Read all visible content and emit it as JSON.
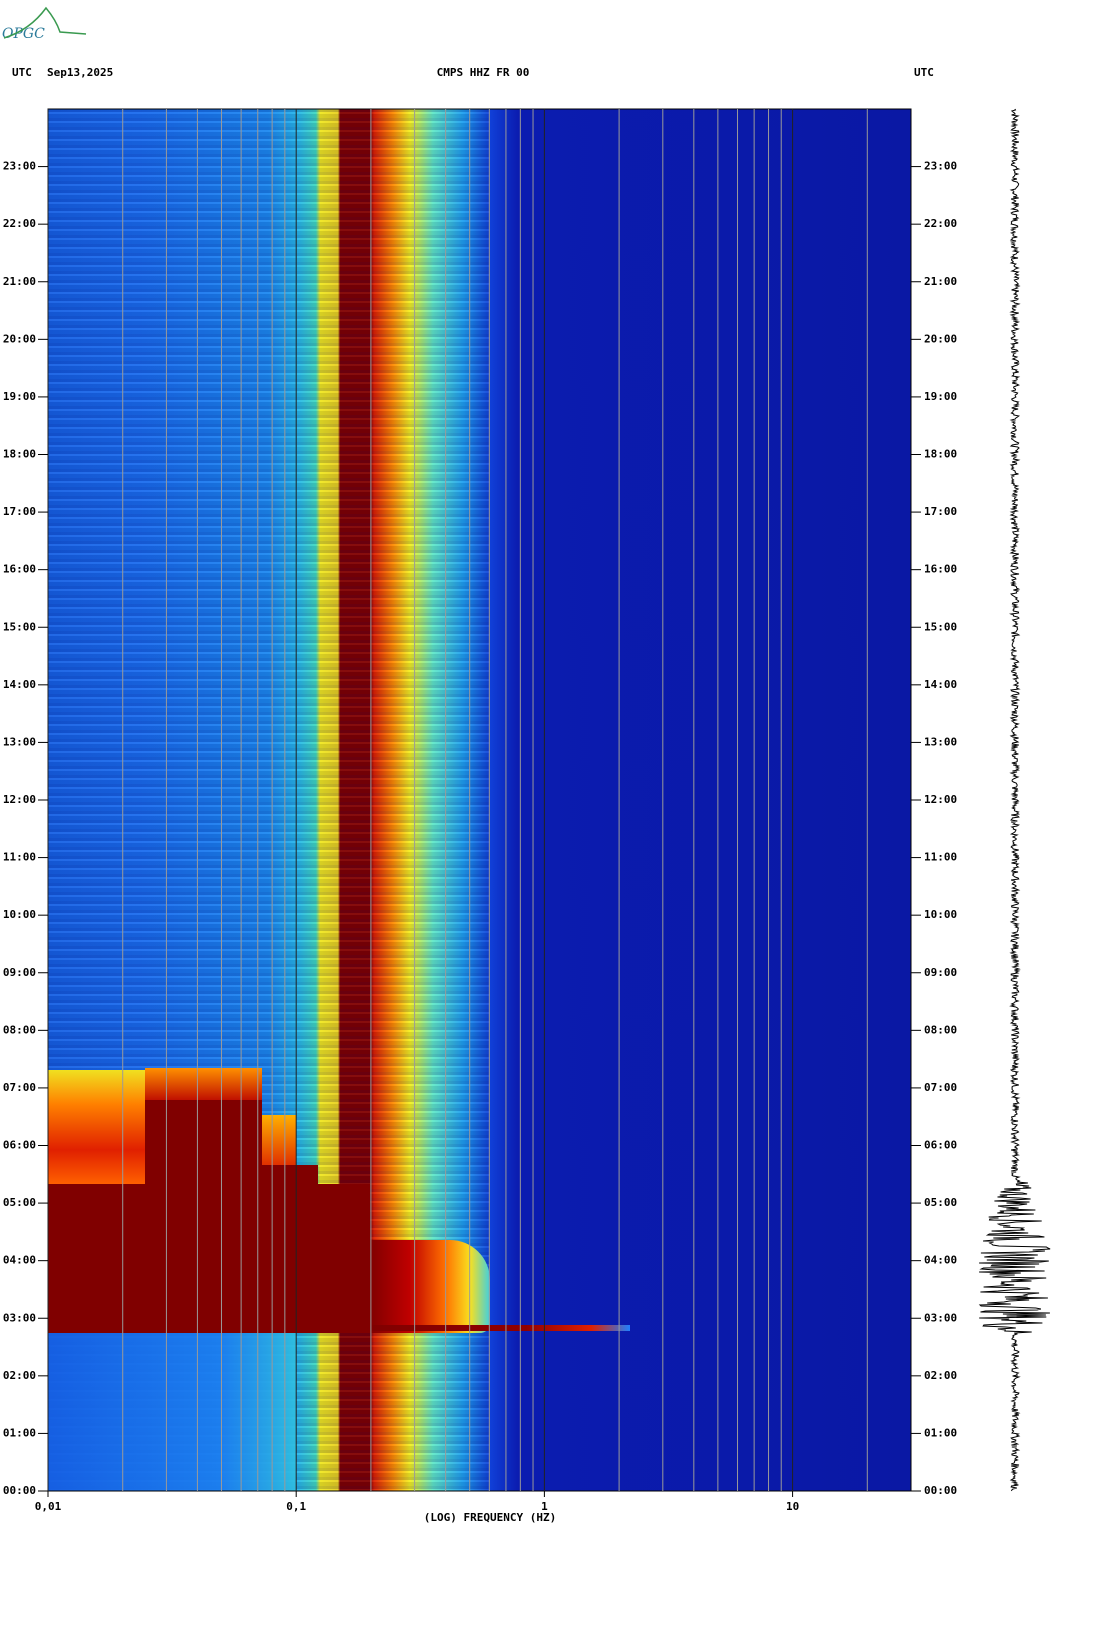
{
  "logo": "OPGC",
  "chart_data": {
    "type": "spectrogram",
    "title": "CMPS HHZ FR 00",
    "left_label": "UTC",
    "date": "Sep13,2025",
    "right_label": "UTC",
    "x_label": "(LOG) FREQUENCY (HZ)",
    "xscale": "log",
    "xlim": [
      0.01,
      30
    ],
    "xticks": [
      {
        "value": 0.01,
        "label": "0,01"
      },
      {
        "value": 0.1,
        "label": "0,1"
      },
      1,
      10
    ],
    "xminorticks": [
      0.02,
      0.03,
      0.04,
      0.05,
      0.06,
      0.07,
      0.08,
      0.09,
      0.2,
      0.3,
      0.4,
      0.5,
      0.6,
      0.7,
      0.8,
      0.9,
      2,
      3,
      4,
      5,
      6,
      7,
      8,
      9,
      20
    ],
    "ylim": [
      0,
      24
    ],
    "yticks": [
      {
        "value": 0,
        "label": "00:00"
      },
      {
        "value": 1,
        "label": "01:00"
      },
      {
        "value": 2,
        "label": "02:00"
      },
      {
        "value": 3,
        "label": "03:00"
      },
      {
        "value": 4,
        "label": "04:00"
      },
      {
        "value": 5,
        "label": "05:00"
      },
      {
        "value": 6,
        "label": "06:00"
      },
      {
        "value": 7,
        "label": "07:00"
      },
      {
        "value": 8,
        "label": "08:00"
      },
      {
        "value": 9,
        "label": "09:00"
      },
      {
        "value": 10,
        "label": "10:00"
      },
      {
        "value": 11,
        "label": "11:00"
      },
      {
        "value": 12,
        "label": "12:00"
      },
      {
        "value": 13,
        "label": "13:00"
      },
      {
        "value": 14,
        "label": "14:00"
      },
      {
        "value": 15,
        "label": "15:00"
      },
      {
        "value": 16,
        "label": "16:00"
      },
      {
        "value": 17,
        "label": "17:00"
      },
      {
        "value": 18,
        "label": "18:00"
      },
      {
        "value": 19,
        "label": "19:00"
      },
      {
        "value": 20,
        "label": "20:00"
      },
      {
        "value": 21,
        "label": "21:00"
      },
      {
        "value": 22,
        "label": "22:00"
      },
      {
        "value": 23,
        "label": "23:00"
      }
    ],
    "grid": true
  }
}
